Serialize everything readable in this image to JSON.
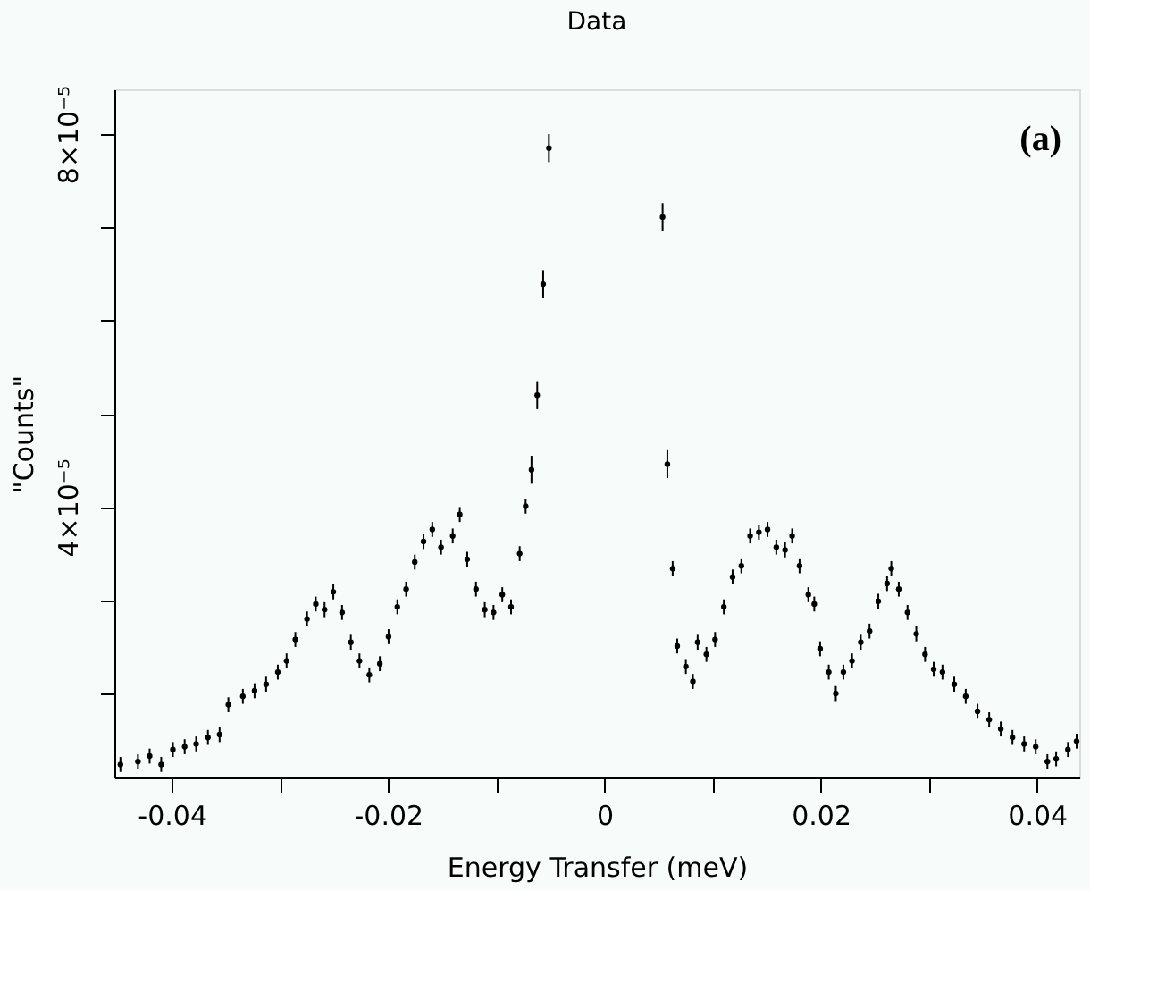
{
  "chart_data": {
    "type": "scatter",
    "title": "Data",
    "xlabel": "Energy Transfer  (meV)",
    "ylabel": "\"Counts\"",
    "annotations": [
      "(a)"
    ],
    "color": "#000000",
    "marker": "circle",
    "x": [
      -0.04474,
      -0.04312,
      -0.04204,
      -0.04097,
      -0.03989,
      -0.0388,
      -0.03774,
      -0.03665,
      -0.03557,
      -0.03476,
      -0.03342,
      -0.03234,
      -0.03127,
      -0.03019,
      -0.02938,
      -0.02857,
      -0.02749,
      -0.02668,
      -0.02587,
      -0.02506,
      -0.02425,
      -0.02344,
      -0.02264,
      -0.02173,
      -0.02076,
      -0.01995,
      -0.01914,
      -0.01833,
      -0.01753,
      -0.01672,
      -0.01591,
      -0.0151,
      -0.01402,
      -0.01337,
      -0.01268,
      -0.01187,
      -0.01106,
      -0.01025,
      -0.00944,
      -0.00863,
      -0.00783,
      -0.00728,
      -0.00674,
      -0.00621,
      -0.00566,
      -0.00513,
      0.00538,
      0.00582,
      0.00631,
      0.00673,
      0.00753,
      0.00818,
      0.00862,
      0.00943,
      0.01023,
      0.01104,
      0.01185,
      0.01266,
      0.01347,
      0.01428,
      0.01508,
      0.01589,
      0.0167,
      0.01735,
      0.01804,
      0.01885,
      0.0194,
      0.01994,
      0.02074,
      0.02139,
      0.02209,
      0.02289,
      0.0237,
      0.02451,
      0.02532,
      0.02613,
      0.02652,
      0.02721,
      0.02802,
      0.02883,
      0.02964,
      0.03044,
      0.03125,
      0.03234,
      0.0334,
      0.03449,
      0.03557,
      0.03664,
      0.03772,
      0.0388,
      0.03987,
      0.04095,
      0.04176,
      0.04285,
      0.04365
    ],
    "values": [
      1.24e-05,
      1.27e-05,
      1.33e-05,
      1.24e-05,
      1.4e-05,
      1.43e-05,
      1.46e-05,
      1.53e-05,
      1.56e-05,
      1.88e-05,
      1.97e-05,
      2.03e-05,
      2.1e-05,
      2.23e-05,
      2.35e-05,
      2.58e-05,
      2.8e-05,
      2.96e-05,
      2.9e-05,
      3.09e-05,
      2.87e-05,
      2.55e-05,
      2.35e-05,
      2.2e-05,
      2.32e-05,
      2.61e-05,
      2.93e-05,
      3.12e-05,
      3.41e-05,
      3.63e-05,
      3.76e-05,
      3.57e-05,
      3.69e-05,
      3.92e-05,
      3.44e-05,
      3.12e-05,
      2.9e-05,
      2.87e-05,
      3.06e-05,
      2.93e-05,
      3.5e-05,
      4.01e-05,
      4.4e-05,
      5.2e-05,
      6.39e-05,
      7.85e-05,
      7.11e-05,
      4.46e-05,
      3.34e-05,
      2.51e-05,
      2.29e-05,
      2.13e-05,
      2.55e-05,
      2.42e-05,
      2.58e-05,
      2.93e-05,
      3.25e-05,
      3.37e-05,
      3.69e-05,
      3.73e-05,
      3.76e-05,
      3.57e-05,
      3.54e-05,
      3.69e-05,
      3.37e-05,
      3.06e-05,
      2.96e-05,
      2.48e-05,
      2.23e-05,
      2e-05,
      2.23e-05,
      2.35e-05,
      2.55e-05,
      2.67e-05,
      2.99e-05,
      3.18e-05,
      3.34e-05,
      3.12e-05,
      2.87e-05,
      2.64e-05,
      2.42e-05,
      2.26e-05,
      2.23e-05,
      2.1e-05,
      1.97e-05,
      1.81e-05,
      1.72e-05,
      1.62e-05,
      1.53e-05,
      1.46e-05,
      1.43e-05,
      1.27e-05,
      1.3e-05,
      1.4e-05,
      1.49e-05
    ],
    "errors": [
      8e-07,
      8e-07,
      8e-07,
      8e-07,
      8e-07,
      8e-07,
      8e-07,
      8e-07,
      8e-07,
      8e-07,
      8e-07,
      8e-07,
      8e-07,
      8e-07,
      8e-07,
      8e-07,
      8e-07,
      8e-07,
      8e-07,
      8e-07,
      8e-07,
      8e-07,
      8e-07,
      8e-07,
      8e-07,
      8e-07,
      8e-07,
      8e-07,
      8e-07,
      8e-07,
      8e-07,
      8e-07,
      8e-07,
      8e-07,
      8e-07,
      8e-07,
      8e-07,
      8e-07,
      8e-07,
      8e-07,
      8e-07,
      8e-07,
      1.5e-06,
      1.5e-06,
      1.5e-06,
      1.5e-06,
      1.5e-06,
      1.5e-06,
      8e-07,
      8e-07,
      8e-07,
      8e-07,
      8e-07,
      8e-07,
      8e-07,
      8e-07,
      8e-07,
      8e-07,
      8e-07,
      8e-07,
      8e-07,
      8e-07,
      8e-07,
      8e-07,
      8e-07,
      8e-07,
      8e-07,
      8e-07,
      8e-07,
      8e-07,
      8e-07,
      8e-07,
      8e-07,
      8e-07,
      8e-07,
      8e-07,
      8e-07,
      8e-07,
      8e-07,
      8e-07,
      8e-07,
      8e-07,
      8e-07,
      8e-07,
      8e-07,
      8e-07,
      8e-07,
      8e-07,
      8e-07,
      8e-07,
      8e-07,
      8e-07,
      8e-07,
      8e-07,
      8e-07
    ],
    "xlim": [
      -0.0453,
      0.0439
    ],
    "xticks": [
      -0.04,
      {
        "value": -0.03,
        "label": null
      },
      -0.02,
      {
        "value": -0.01,
        "label": null
      },
      0,
      {
        "value": 0.01,
        "label": null
      },
      0.02,
      {
        "value": 0.03,
        "label": null
      },
      0.04
    ],
    "ylim": [
      1.1e-05,
      8.48e-05
    ],
    "yticks": [
      {
        "value": 2e-05,
        "label": null
      },
      {
        "value": 3e-05,
        "label": null
      },
      {
        "value": 4e-05,
        "label": "4×10⁻⁵"
      },
      {
        "value": 5e-05,
        "label": null
      },
      {
        "value": 6e-05,
        "label": null
      },
      {
        "value": 7e-05,
        "label": null
      },
      {
        "value": 8e-05,
        "label": "8×10⁻⁵"
      }
    ]
  }
}
